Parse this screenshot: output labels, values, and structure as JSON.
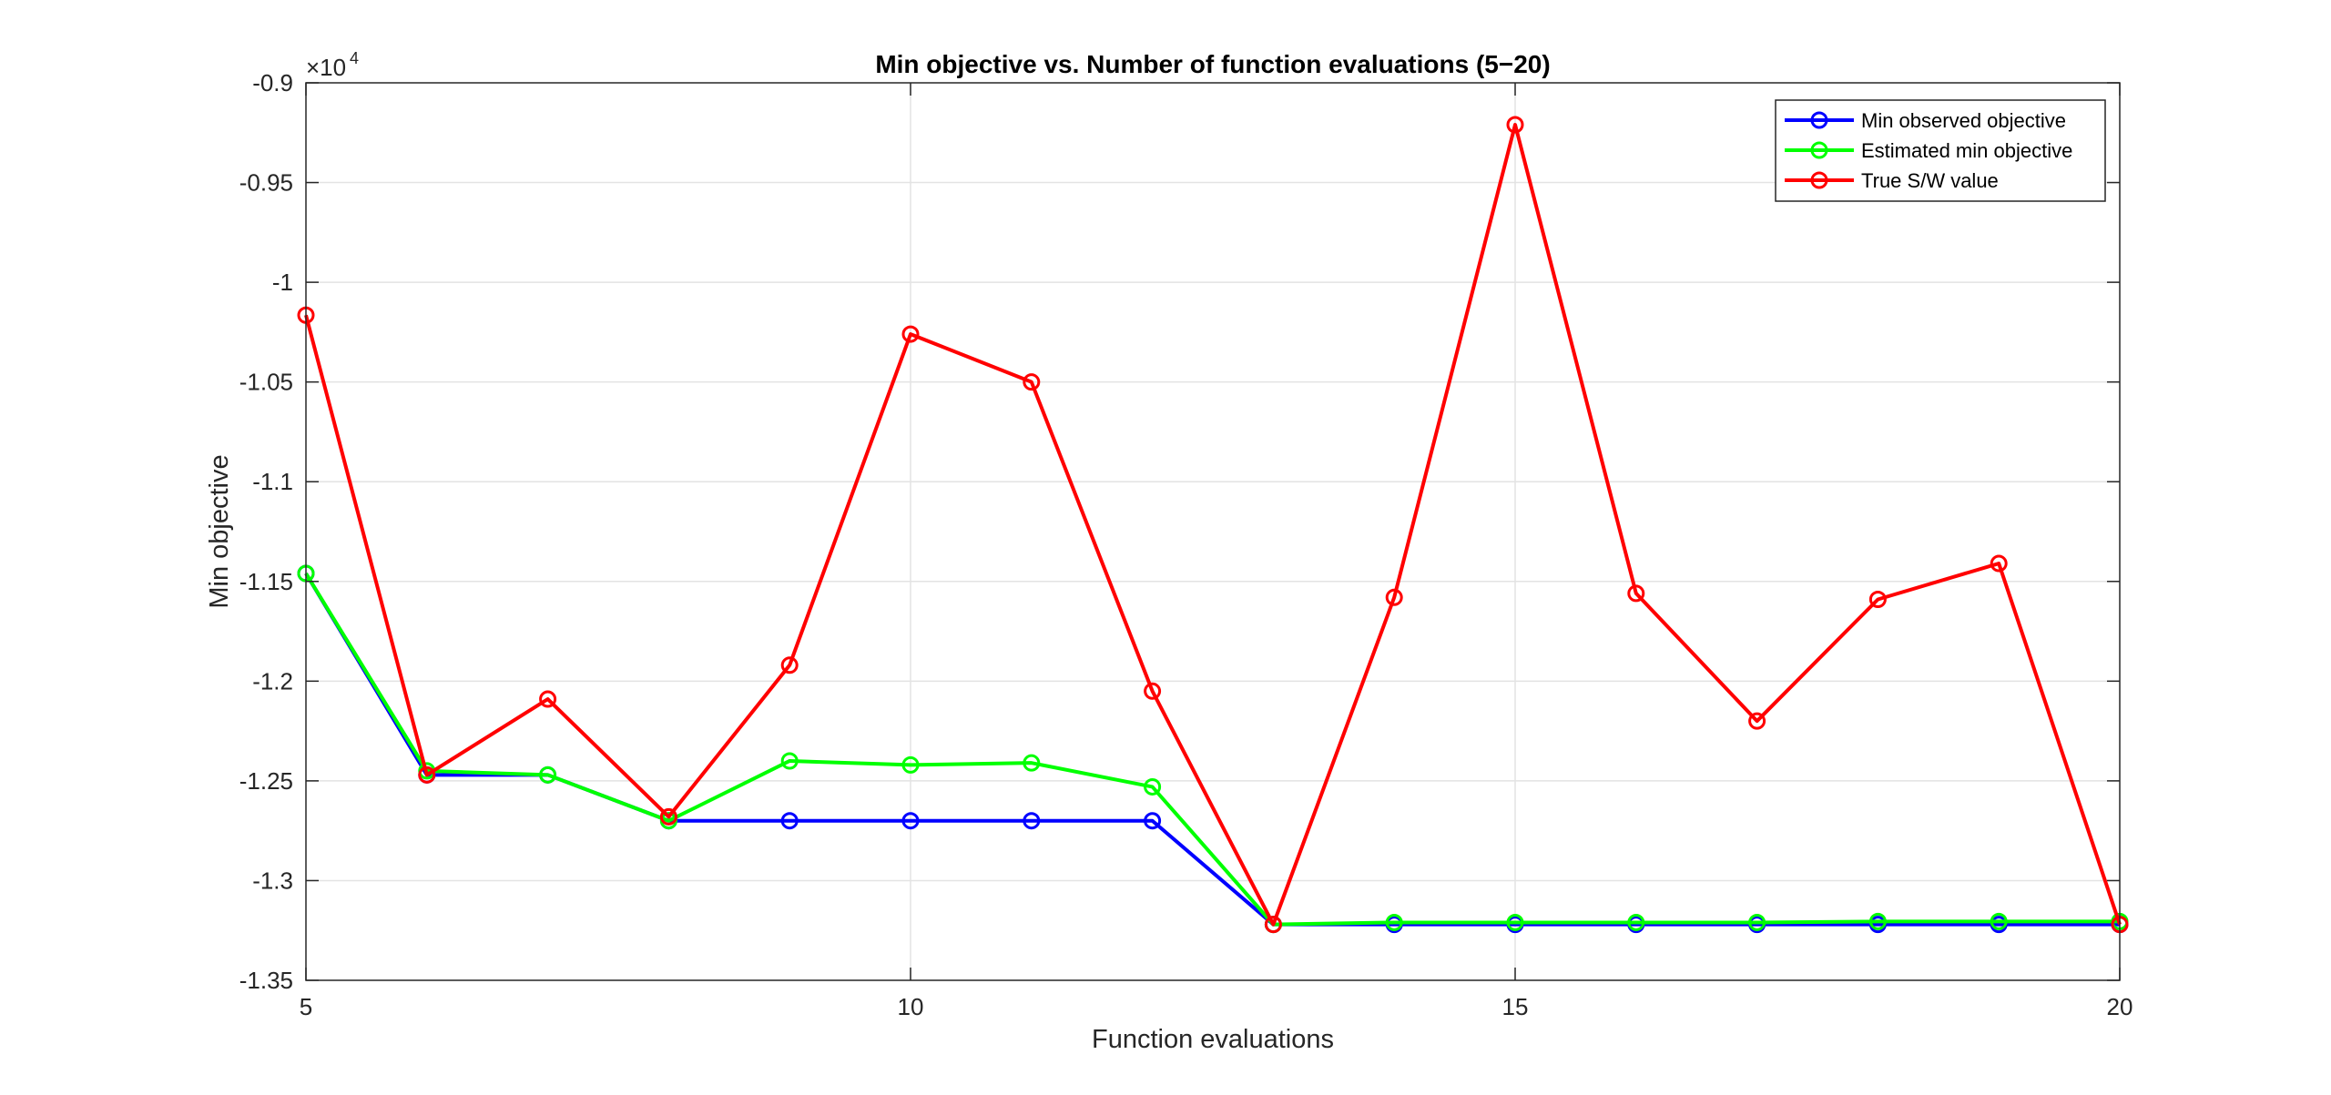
{
  "chart_data": {
    "type": "line",
    "title": "Min objective vs. Number of function evaluations (5−20)",
    "xlabel": "Function evaluations",
    "ylabel": "Min objective",
    "exponent_base": "×10",
    "exponent_power": "4",
    "xlim": [
      5,
      20
    ],
    "ylim": [
      -1.35,
      -0.9
    ],
    "x_ticks": [
      5,
      10,
      15,
      20
    ],
    "x_tick_labels": [
      "5",
      "10",
      "15",
      "20"
    ],
    "y_ticks": [
      -1.35,
      -1.3,
      -1.25,
      -1.2,
      -1.15,
      -1.1,
      -1.05,
      -1,
      -0.95,
      -0.9
    ],
    "y_tick_labels": [
      "-1.35",
      "-1.3",
      "-1.25",
      "-1.2",
      "-1.15",
      "-1.1",
      "-1.05",
      "-1",
      "-0.95",
      "-0.9"
    ],
    "grid": true,
    "legend_position": "top-right",
    "x": [
      5,
      6,
      7,
      8,
      9,
      10,
      11,
      12,
      13,
      14,
      15,
      16,
      17,
      18,
      19,
      20
    ],
    "series": [
      {
        "name": "Min observed objective",
        "color": "#0000ff",
        "values": [
          -1.146,
          -1.247,
          -1.247,
          -1.27,
          -1.27,
          -1.27,
          -1.27,
          -1.27,
          -1.322,
          -1.322,
          -1.322,
          -1.322,
          -1.322,
          -1.322,
          -1.322,
          -1.322
        ]
      },
      {
        "name": "Estimated min objective",
        "color": "#00ff00",
        "values": [
          -1.146,
          -1.245,
          -1.247,
          -1.27,
          -1.24,
          -1.242,
          -1.241,
          -1.253,
          -1.322,
          -1.321,
          -1.321,
          -1.321,
          -1.321,
          -1.3205,
          -1.3205,
          -1.3205
        ]
      },
      {
        "name": "True S/W value",
        "color": "#ff0000",
        "values": [
          -1.0165,
          -1.247,
          -1.209,
          -1.268,
          -1.192,
          -1.026,
          -1.05,
          -1.205,
          -1.322,
          -1.158,
          -0.921,
          -1.156,
          -1.22,
          -1.159,
          -1.141,
          -1.322
        ]
      }
    ]
  }
}
